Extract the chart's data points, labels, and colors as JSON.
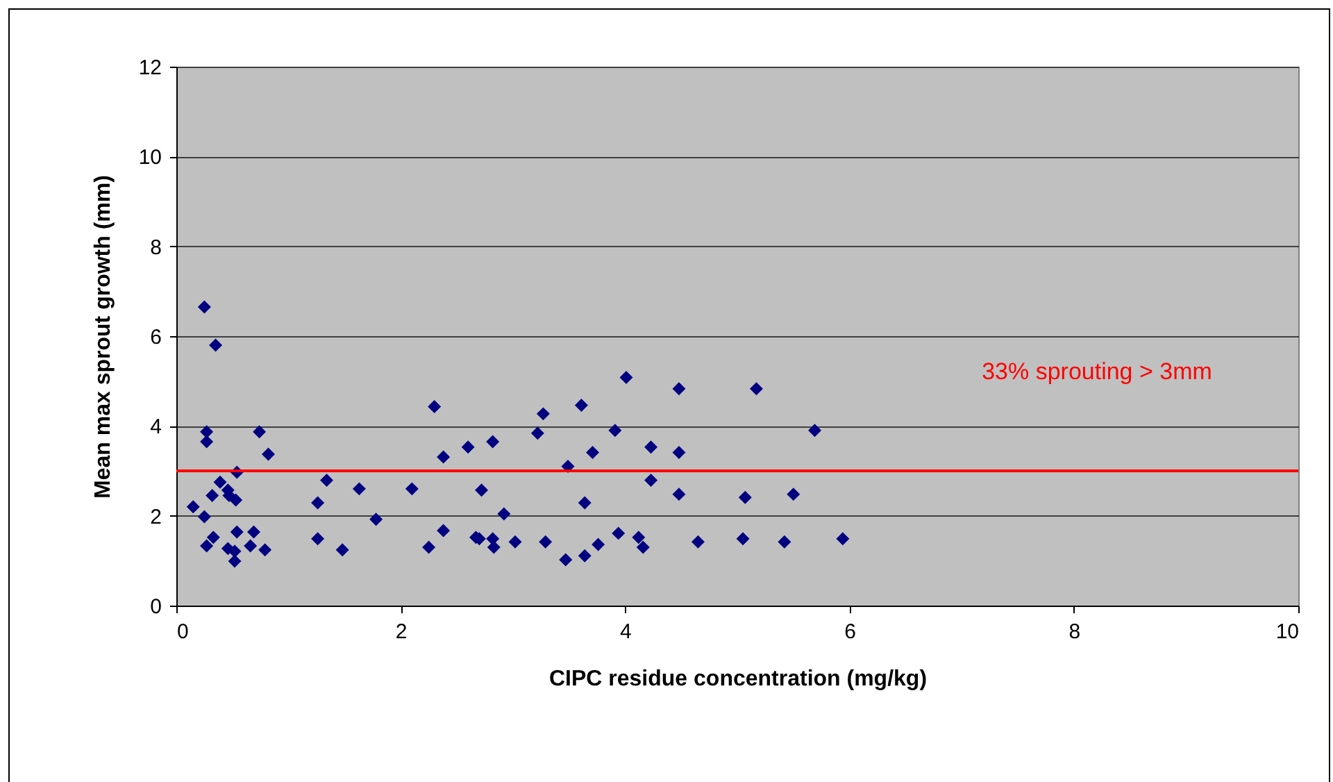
{
  "chart_data": {
    "type": "scatter",
    "xlabel": "CIPC residue concentration (mg/kg)",
    "ylabel": "Mean max sprout growth (mm)",
    "xlim": [
      0,
      10
    ],
    "xticks": [
      0,
      2,
      4,
      6,
      8,
      10
    ],
    "ylim": [
      0,
      12
    ],
    "yticks": [
      0,
      2,
      4,
      6,
      8,
      10,
      12
    ],
    "grid": "y",
    "marker": "diamond",
    "series": [
      {
        "color": "#000080",
        "x": [
          0.25,
          0.35,
          0.27,
          0.27,
          0.74,
          0.82,
          0.54,
          0.39,
          0.46,
          0.32,
          0.53,
          0.47,
          0.15,
          0.25,
          0.33,
          0.27,
          0.54,
          0.69,
          0.66,
          0.79,
          0.46,
          0.52,
          0.52,
          1.34,
          1.26,
          1.63,
          1.78,
          1.26,
          1.48,
          2.3,
          2.1,
          2.38,
          2.25,
          2.38,
          2.6,
          2.82,
          2.72,
          2.92,
          2.67,
          2.7,
          2.82,
          2.83,
          3.02,
          3.27,
          3.22,
          3.29,
          3.49,
          3.47,
          3.61,
          3.64,
          3.64,
          3.71,
          3.76,
          3.91,
          3.94,
          4.01,
          4.12,
          4.16,
          4.48,
          5.17,
          4.23,
          4.48,
          5.69,
          4.23,
          4.48,
          5.07,
          5.5,
          4.65,
          5.05,
          5.42,
          5.94
        ],
        "values": [
          6.65,
          5.8,
          3.87,
          3.65,
          3.87,
          3.37,
          2.97,
          2.75,
          2.57,
          2.45,
          2.35,
          2.45,
          2.2,
          1.98,
          1.52,
          1.33,
          1.64,
          1.64,
          1.33,
          1.24,
          1.27,
          1.21,
          0.99,
          2.79,
          2.29,
          2.6,
          1.92,
          1.49,
          1.24,
          4.43,
          2.6,
          3.31,
          1.3,
          1.67,
          3.53,
          3.65,
          2.57,
          2.04,
          1.52,
          1.49,
          1.49,
          1.3,
          1.42,
          4.27,
          3.84,
          1.42,
          3.1,
          1.02,
          4.46,
          2.29,
          1.11,
          3.41,
          1.36,
          3.9,
          1.61,
          5.08,
          1.52,
          1.3,
          4.83,
          4.83,
          3.53,
          3.41,
          3.9,
          2.79,
          2.48,
          2.41,
          2.48,
          1.42,
          1.49,
          1.42,
          1.49
        ]
      }
    ],
    "ref_lines": [
      {
        "axis": "y",
        "value": 3,
        "color": "#ff0000"
      }
    ],
    "annotations": [
      "33% sprouting > 3mm"
    ]
  }
}
